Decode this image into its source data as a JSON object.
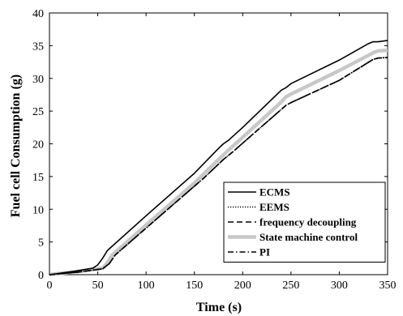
{
  "chart_data": {
    "type": "line",
    "xlabel": "Time (s)",
    "ylabel": "Fuel cell Consumption (g)",
    "xlim": [
      0,
      350
    ],
    "ylim": [
      0,
      40
    ],
    "xticks": [
      0,
      50,
      100,
      150,
      200,
      250,
      300,
      350
    ],
    "yticks": [
      0,
      5,
      10,
      15,
      20,
      25,
      30,
      35,
      40
    ],
    "grid": false,
    "legend_position": "bottom-right",
    "series": [
      {
        "name": "ECMS",
        "color": "#000000",
        "style": "solid",
        "x": [
          0,
          25,
          45,
          50,
          55,
          60,
          100,
          150,
          175,
          180,
          185,
          200,
          240,
          245,
          250,
          300,
          330,
          335,
          340,
          350
        ],
        "y": [
          0,
          0.5,
          1.0,
          1.5,
          2.5,
          3.7,
          9.0,
          15.5,
          19.3,
          20.0,
          20.5,
          22.5,
          28.2,
          28.6,
          29.2,
          32.8,
          35.3,
          35.6,
          35.6,
          35.8
        ]
      },
      {
        "name": "EEMS",
        "color": "#000000",
        "style": "dotted",
        "x": [
          0,
          30,
          55,
          62,
          68,
          110,
          160,
          180,
          190,
          210,
          245,
          250,
          300,
          335,
          340,
          350
        ],
        "y": [
          0,
          0.4,
          0.9,
          1.7,
          3.0,
          8.4,
          14.8,
          17.6,
          18.8,
          21.4,
          25.9,
          26.3,
          29.7,
          32.9,
          33.1,
          33.2
        ]
      },
      {
        "name": "frequency decoupling",
        "color": "#000000",
        "style": "dashed",
        "x": [
          0,
          30,
          55,
          62,
          68,
          110,
          160,
          180,
          190,
          210,
          245,
          250,
          300,
          335,
          340,
          350
        ],
        "y": [
          0,
          0.4,
          0.9,
          1.7,
          3.0,
          8.4,
          14.8,
          17.6,
          18.8,
          21.4,
          25.9,
          26.3,
          29.7,
          32.9,
          33.1,
          33.2
        ]
      },
      {
        "name": "State machine control",
        "color": "#c8c8c8",
        "style": "solid",
        "x": [
          0,
          30,
          55,
          60,
          65,
          100,
          150,
          180,
          185,
          200,
          240,
          245,
          250,
          300,
          335,
          340,
          350
        ],
        "y": [
          0,
          0.5,
          1.0,
          1.8,
          3.0,
          7.6,
          14.0,
          18.3,
          19.0,
          21.0,
          26.4,
          27.2,
          27.6,
          31.2,
          33.9,
          34.2,
          34.3
        ]
      },
      {
        "name": "PI",
        "color": "#000000",
        "style": "dashdot",
        "x": [
          0,
          30,
          55,
          62,
          68,
          110,
          160,
          180,
          190,
          210,
          245,
          250,
          300,
          335,
          340,
          350
        ],
        "y": [
          0,
          0.4,
          0.9,
          1.7,
          3.0,
          8.4,
          14.8,
          17.6,
          18.8,
          21.4,
          25.9,
          26.3,
          29.7,
          32.9,
          33.1,
          33.2
        ]
      }
    ]
  }
}
